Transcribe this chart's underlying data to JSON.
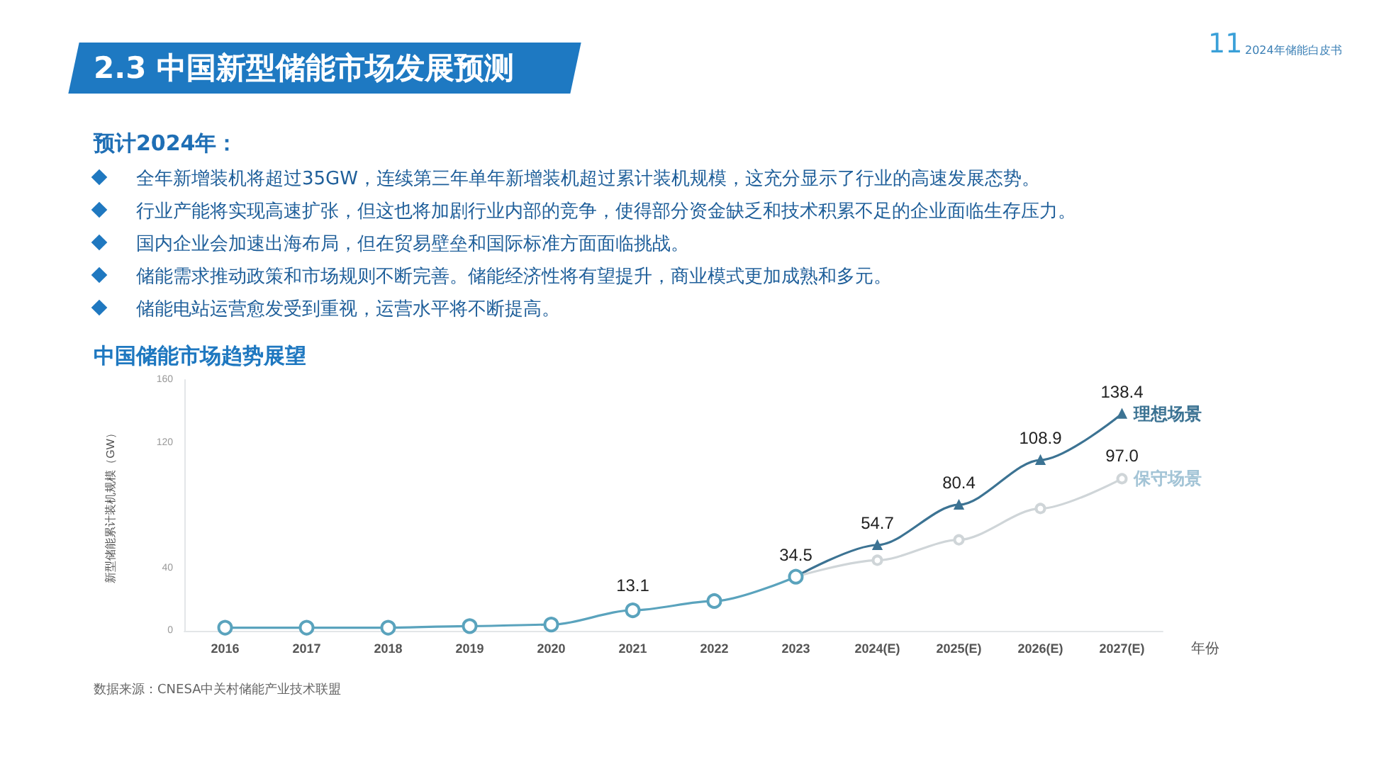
{
  "chart_data": {
    "type": "line",
    "title": "2.3 中国新型储能市场发展预测",
    "subtitle": "中国储能市场趋势展望",
    "xlabel": "年份",
    "ylabel": "新型储能累计装机规模（GW）",
    "categories": [
      "2016",
      "2017",
      "2018",
      "2019",
      "2020",
      "2021",
      "2022",
      "2023",
      "2024(E)",
      "2025(E)",
      "2026(E)",
      "2027(E)"
    ],
    "series": [
      {
        "color": "#5aa3bd",
        "marker": "circle",
        "values": [
          2,
          2,
          2,
          3,
          4,
          13.1,
          19,
          34.5,
          null,
          null,
          null,
          null
        ],
        "value_labels": [
          null,
          null,
          null,
          null,
          null,
          "13.1",
          null,
          null,
          null,
          null,
          null,
          null
        ]
      },
      {
        "name": "理想场景",
        "color": "#3c7393",
        "marker": "triangle",
        "values": [
          null,
          null,
          null,
          null,
          null,
          null,
          null,
          34.5,
          54.7,
          80.4,
          108.9,
          138.4
        ],
        "value_labels": [
          null,
          null,
          null,
          null,
          null,
          null,
          null,
          "34.5",
          "54.7",
          "80.4",
          "108.9",
          "138.4"
        ]
      },
      {
        "name": "保守场景",
        "color": "#cfd5d8",
        "marker": "circle",
        "values": [
          null,
          null,
          null,
          null,
          null,
          null,
          null,
          34.5,
          45,
          58,
          78,
          97.0
        ],
        "value_labels": [
          null,
          null,
          null,
          null,
          null,
          null,
          null,
          null,
          null,
          null,
          null,
          "97.0"
        ]
      }
    ],
    "ylim": [
      0,
      160
    ],
    "yticks": [
      0,
      40,
      120,
      160
    ],
    "grid": false,
    "legend": false,
    "line_style": "solid",
    "annotations": [
      "预计2024年：",
      "全年新增装机将超过35GW，连续第三年单年新增装机超过累计装机规模，这充分显示了行业的高速发展态势。",
      "行业产能将实现高速扩张，但这也将加剧行业内部的竞争，使得部分资金缺乏和技术积累不足的企业面临生存压力。",
      "国内企业会加速出海布局，但在贸易壁垒和国际标准方面面临挑战。",
      "储能需求推动政策和市场规则不断完善。储能经济性将有望提升，商业模式更加成熟和多元。",
      "储能电站运营愈发受到重视，运营水平将不断提高。",
      "数据来源：CNESA中关村储能产业技术联盟",
      "11",
      "2024年储能白皮书"
    ]
  }
}
